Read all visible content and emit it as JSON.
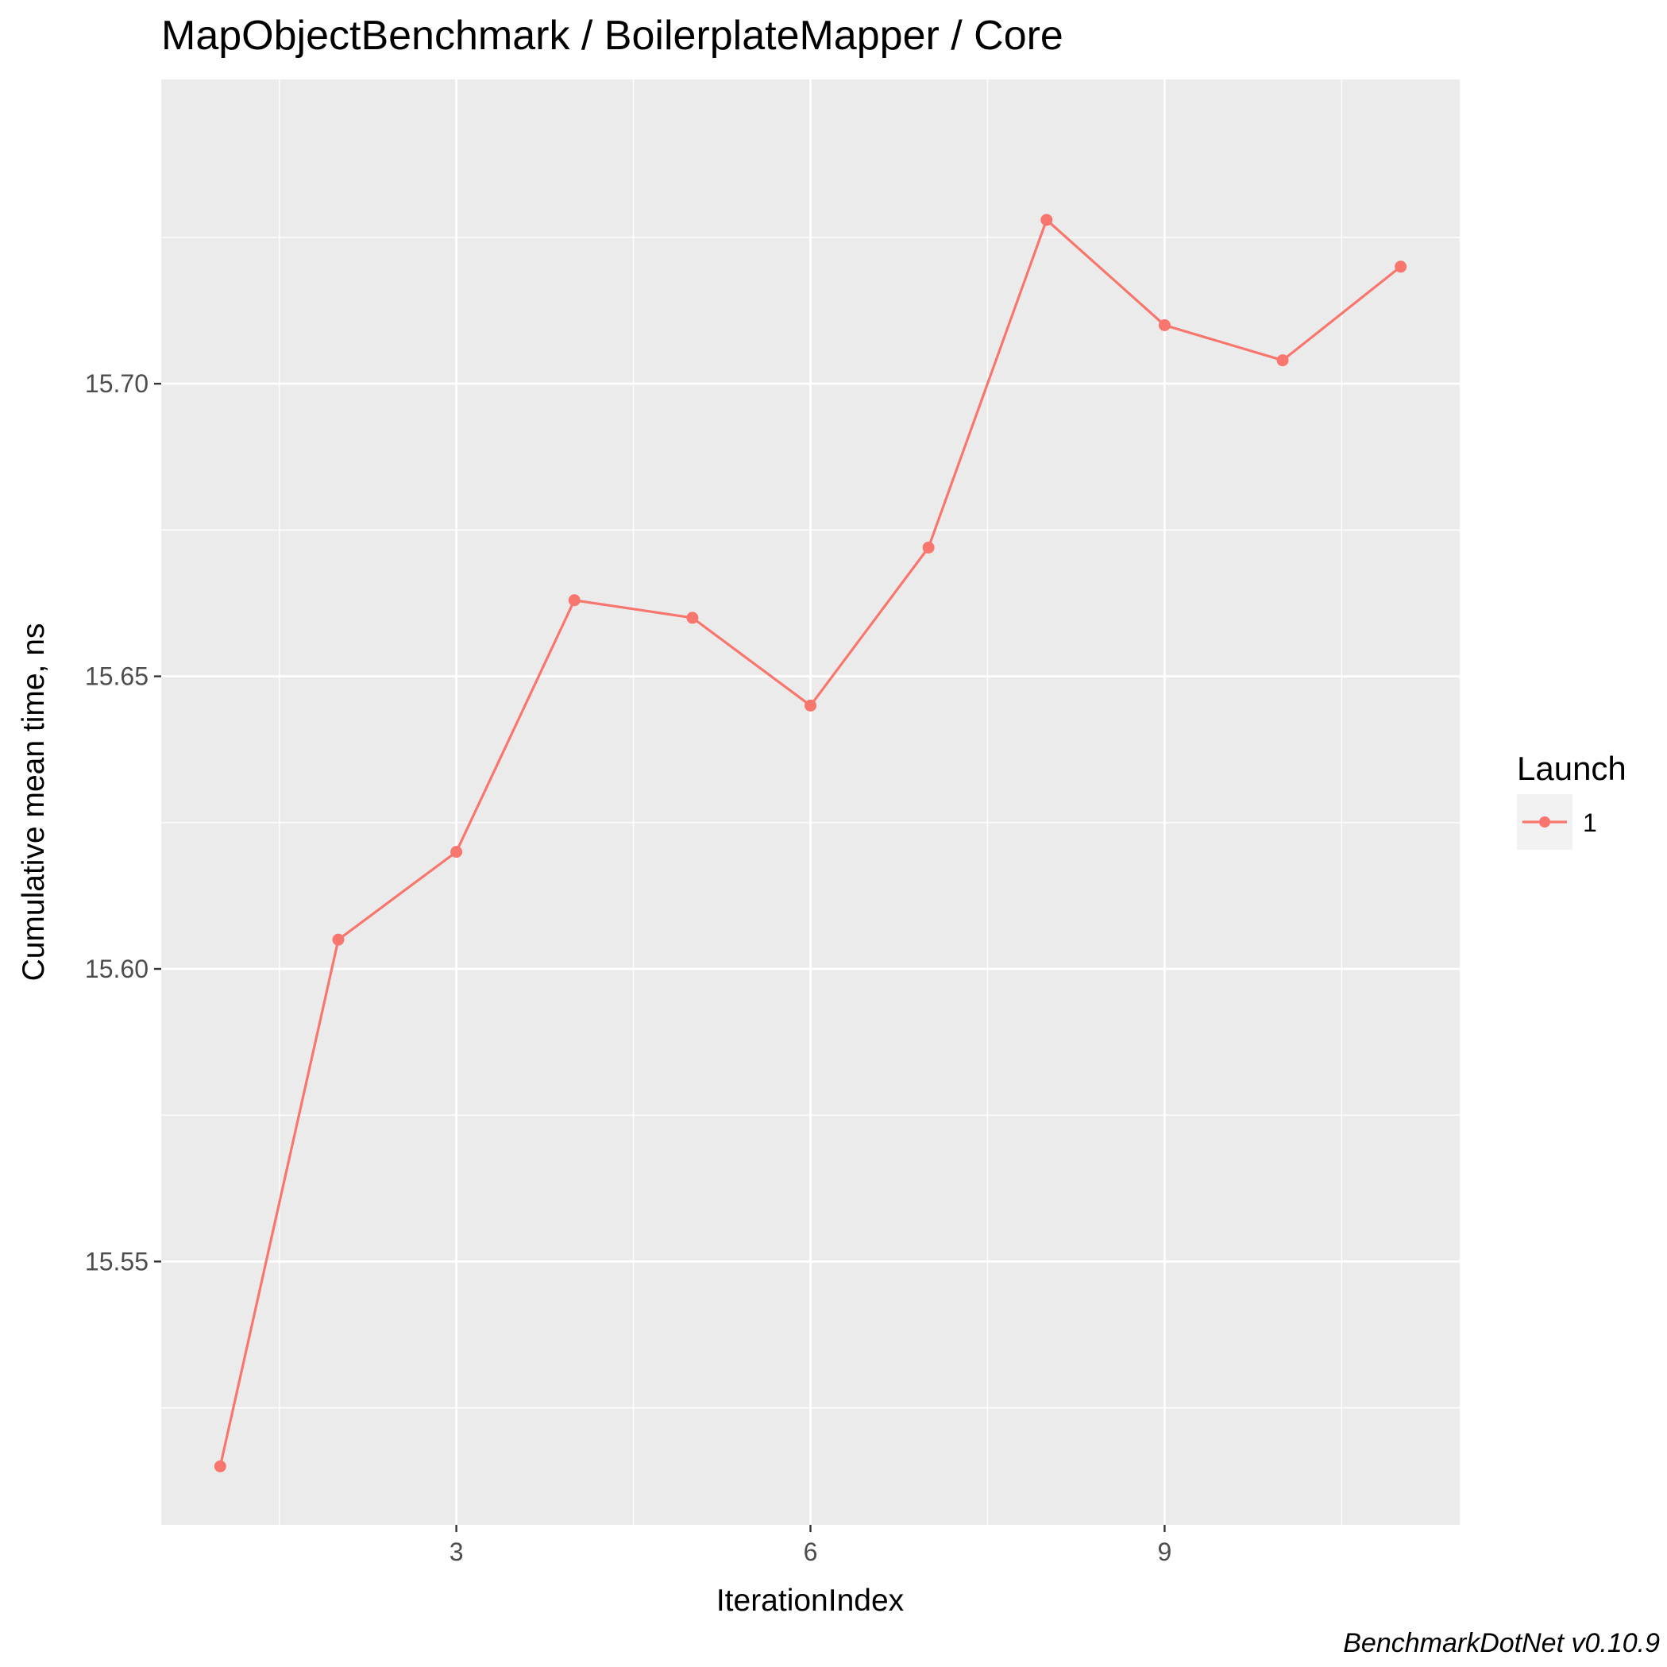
{
  "chart_data": {
    "type": "line",
    "title": "MapObjectBenchmark / BoilerplateMapper / Core",
    "xlabel": "IterationIndex",
    "ylabel": "Cumulative mean time, ns",
    "caption": "BenchmarkDotNet v0.10.9",
    "xlim": [
      0.5,
      11.5
    ],
    "ylim": [
      15.505,
      15.752
    ],
    "x_ticks": [
      3,
      6,
      9
    ],
    "x_tick_labels": [
      "3",
      "6",
      "9"
    ],
    "x_minor_ticks": [
      1.5,
      4.5,
      7.5,
      10.5
    ],
    "y_ticks": [
      15.55,
      15.6,
      15.65,
      15.7
    ],
    "y_tick_labels": [
      "15.55",
      "15.60",
      "15.65",
      "15.70"
    ],
    "y_minor_ticks": [
      15.525,
      15.575,
      15.625,
      15.675,
      15.725
    ],
    "grid": true,
    "legend": {
      "title": "Launch",
      "position": "right"
    },
    "series": [
      {
        "name": "1",
        "color": "#f8766d",
        "x": [
          1,
          2,
          3,
          4,
          5,
          6,
          7,
          8,
          9,
          10,
          11
        ],
        "y": [
          15.515,
          15.605,
          15.62,
          15.663,
          15.66,
          15.645,
          15.672,
          15.728,
          15.71,
          15.704,
          15.72
        ]
      }
    ]
  }
}
